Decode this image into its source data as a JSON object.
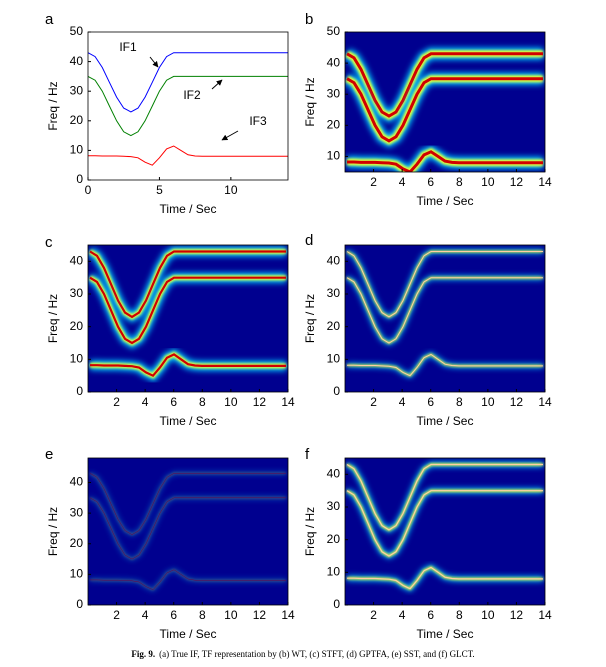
{
  "chart_data": [
    {
      "type": "line",
      "panel": "a",
      "xlabel": "Time / Sec",
      "ylabel": "Freq / Hz",
      "x": [
        0,
        0.5,
        1,
        1.5,
        2,
        2.5,
        3,
        3.5,
        4,
        4.5,
        5,
        5.5,
        6,
        6.5,
        7,
        7.5,
        8,
        8.5,
        9,
        9.5,
        10,
        10.5,
        11,
        11.5,
        12,
        12.5,
        13,
        13.5,
        14
      ],
      "xlim": [
        0,
        14
      ],
      "ylim": [
        0,
        50
      ],
      "xticks": [
        0,
        5,
        10
      ],
      "yticks": [
        0,
        10,
        20,
        30,
        40,
        50
      ],
      "series": [
        {
          "name": "IF1",
          "color": "#0000ff",
          "values": [
            43,
            41.7,
            38,
            33,
            28,
            24.3,
            23,
            24.3,
            28,
            33,
            38,
            41.7,
            43,
            43,
            43,
            43,
            43,
            43,
            43,
            43,
            43,
            43,
            43,
            43,
            43,
            43,
            43,
            43,
            43
          ]
        },
        {
          "name": "IF2",
          "color": "#008000",
          "values": [
            35,
            33.7,
            30,
            25,
            20,
            16.3,
            15,
            16.3,
            20,
            25,
            30,
            33.7,
            35,
            35,
            35,
            35,
            35,
            35,
            35,
            35,
            35,
            35,
            35,
            35,
            35,
            35,
            35,
            35,
            35
          ]
        },
        {
          "name": "IF3",
          "color": "#ff0000",
          "values": [
            8.2,
            8.2,
            8.1,
            8.1,
            8.1,
            8,
            7.9,
            7.5,
            6,
            5,
            7.5,
            10.5,
            11.5,
            10,
            8.5,
            8.1,
            8,
            8,
            8,
            8,
            8,
            8,
            8,
            8,
            8,
            8,
            8,
            8,
            8
          ]
        }
      ]
    },
    {
      "type": "tf-image",
      "panel": "b",
      "xlabel": "Time / Sec",
      "ylabel": "Freq / Hz",
      "xlim": [
        0,
        14
      ],
      "ylim": [
        5,
        50
      ],
      "xticks": [
        2,
        4,
        6,
        8,
        10,
        12,
        14
      ],
      "yticks": [
        10,
        20,
        30,
        40,
        50
      ]
    },
    {
      "type": "tf-image",
      "panel": "c",
      "xlabel": "Time / Sec",
      "ylabel": "Freq / Hz",
      "xlim": [
        0,
        14
      ],
      "ylim": [
        0,
        45
      ],
      "xticks": [
        2,
        4,
        6,
        8,
        10,
        12,
        14
      ],
      "yticks": [
        0,
        10,
        20,
        30,
        40
      ]
    },
    {
      "type": "tf-image",
      "panel": "d",
      "xlabel": "Time / Sec",
      "ylabel": "Freq / Hz",
      "xlim": [
        0,
        14
      ],
      "ylim": [
        0,
        45
      ],
      "xticks": [
        2,
        4,
        6,
        8,
        10,
        12,
        14
      ],
      "yticks": [
        0,
        10,
        20,
        30,
        40
      ]
    },
    {
      "type": "tf-image",
      "panel": "e",
      "xlabel": "Time / Sec",
      "ylabel": "Freq / Hz",
      "xlim": [
        0,
        14
      ],
      "ylim": [
        0,
        48
      ],
      "xticks": [
        2,
        4,
        6,
        8,
        10,
        12,
        14
      ],
      "yticks": [
        0,
        10,
        20,
        30,
        40
      ]
    },
    {
      "type": "tf-image",
      "panel": "f",
      "xlabel": "Time / Sec",
      "ylabel": "Freq / Hz",
      "xlim": [
        0,
        14
      ],
      "ylim": [
        0,
        45
      ],
      "xticks": [
        2,
        4,
        6,
        8,
        10,
        12,
        14
      ],
      "yticks": [
        0,
        10,
        20,
        30,
        40
      ]
    }
  ],
  "caption": {
    "label": "Fig. 9.",
    "text": "(a) True IF, TF representation by (b) WT, (c) STFT, (d) GPTFA, (e) SST, and (f) GLCT."
  }
}
